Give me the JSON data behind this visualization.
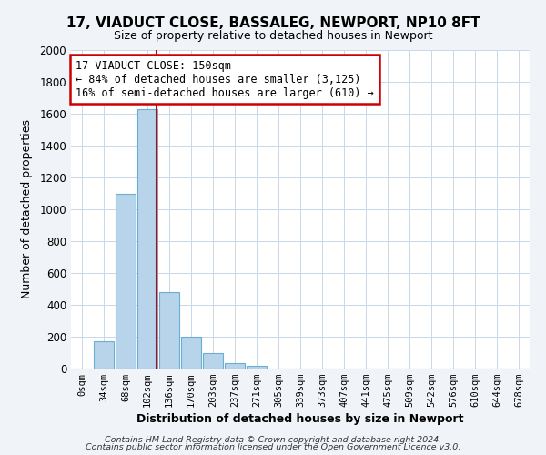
{
  "title": "17, VIADUCT CLOSE, BASSALEG, NEWPORT, NP10 8FT",
  "subtitle": "Size of property relative to detached houses in Newport",
  "xlabel": "Distribution of detached houses by size in Newport",
  "ylabel": "Number of detached properties",
  "bar_labels": [
    "0sqm",
    "34sqm",
    "68sqm",
    "102sqm",
    "136sqm",
    "170sqm",
    "203sqm",
    "237sqm",
    "271sqm",
    "305sqm",
    "339sqm",
    "373sqm",
    "407sqm",
    "441sqm",
    "475sqm",
    "509sqm",
    "542sqm",
    "576sqm",
    "610sqm",
    "644sqm",
    "678sqm"
  ],
  "bar_values": [
    0,
    170,
    1095,
    1630,
    480,
    200,
    100,
    35,
    20,
    0,
    0,
    0,
    0,
    0,
    0,
    0,
    0,
    0,
    0,
    0,
    0
  ],
  "bar_color": "#b8d4ea",
  "bar_edge_color": "#6aaed6",
  "vline_color": "#cc0000",
  "annotation_title": "17 VIADUCT CLOSE: 150sqm",
  "annotation_line1": "← 84% of detached houses are smaller (3,125)",
  "annotation_line2": "16% of semi-detached houses are larger (610) →",
  "annotation_box_color": "#cc0000",
  "ylim": [
    0,
    2000
  ],
  "yticks": [
    0,
    200,
    400,
    600,
    800,
    1000,
    1200,
    1400,
    1600,
    1800,
    2000
  ],
  "footnote1": "Contains HM Land Registry data © Crown copyright and database right 2024.",
  "footnote2": "Contains public sector information licensed under the Open Government Licence v3.0.",
  "background_color": "#f0f4f8",
  "plot_background_color": "#ffffff",
  "grid_color": "#c8d8e8"
}
